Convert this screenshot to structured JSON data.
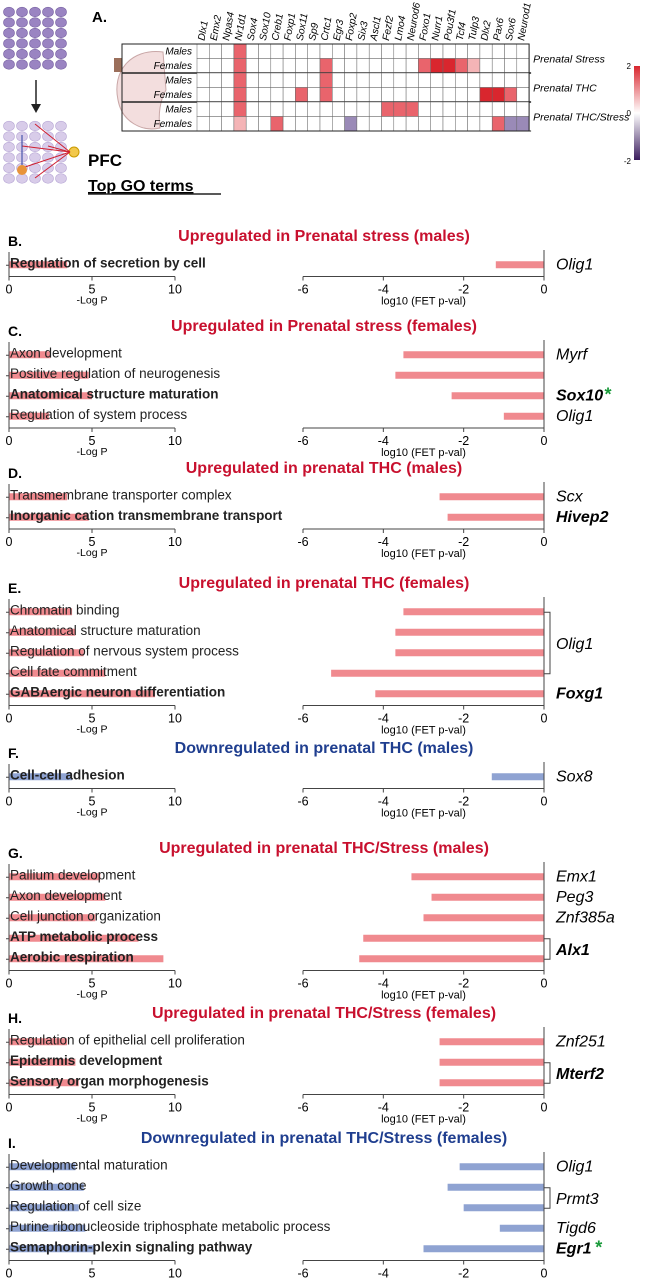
{
  "colors": {
    "up": "#c8102e",
    "down": "#1f3e8f",
    "bar_up": "#f08a8f",
    "bar_down": "#8fa3d2",
    "cell_up": "#e9646c",
    "cell_up_dark": "#d9262e",
    "cell_down": "#9a8ab7"
  },
  "heatmap": {
    "label": "A.",
    "genes": [
      "Dlx1",
      "Emx2",
      "Npas4",
      "Nr1d1",
      "Sox4",
      "Sox10",
      "Creb1",
      "Foxp1",
      "Sox11",
      "Sp9",
      "Crtc1",
      "Egr3",
      "Foxp2",
      "Six3",
      "Ascl1",
      "Fezf2",
      "Lmo4",
      "Neurod6",
      "Foxo1",
      "Nurr1",
      "Pou3f1",
      "Tcf4",
      "Tulp3",
      "Dlx2",
      "Pax6",
      "Sox6",
      "Neurod1"
    ],
    "groups": [
      {
        "name": "Prenatal Stress",
        "rows": [
          "Males",
          "Females"
        ]
      },
      {
        "name": "Prenatal THC",
        "rows": [
          "Males",
          "Females"
        ]
      },
      {
        "name": "Prenatal THC/Stress",
        "rows": [
          "Males",
          "Females"
        ]
      }
    ],
    "cells": [
      [
        0,
        0,
        0,
        0.8,
        0,
        0,
        0,
        0,
        0,
        0,
        0,
        0,
        0,
        0,
        0,
        0,
        0,
        0,
        0,
        0,
        0,
        0,
        0,
        0,
        0,
        0,
        0
      ],
      [
        0,
        0,
        0,
        0.8,
        0,
        0,
        0,
        0,
        0,
        0,
        0.7,
        0,
        0,
        0,
        0,
        0,
        0,
        0,
        0.8,
        1,
        1,
        0.8,
        0.3,
        0,
        0,
        0,
        0
      ],
      [
        0,
        0,
        0,
        0.8,
        0,
        0,
        0,
        0,
        0,
        0,
        0.7,
        0,
        0,
        0,
        0,
        0,
        0,
        0,
        0,
        0,
        0,
        0,
        0,
        0,
        0,
        0,
        0
      ],
      [
        0,
        0,
        0,
        0.5,
        0,
        0,
        0,
        0,
        0.8,
        0,
        0.7,
        0,
        0,
        0,
        0,
        0,
        0,
        0,
        0,
        0,
        0,
        0,
        0,
        0.9,
        1,
        0.6,
        0
      ],
      [
        0,
        0,
        0,
        0.8,
        0,
        0,
        0,
        0,
        0,
        0,
        0,
        0,
        0,
        0,
        0,
        0.7,
        0.6,
        0.6,
        0,
        0,
        0,
        0,
        0,
        0,
        0,
        0,
        0
      ],
      [
        0,
        0,
        0,
        0.3,
        0,
        0,
        0.7,
        0,
        0,
        0,
        0,
        0,
        -0.6,
        0,
        0,
        0,
        0,
        0,
        0,
        0,
        0,
        0,
        0,
        0,
        0.8,
        -0.5,
        -0.5
      ]
    ],
    "colorbar": {
      "max": "2",
      "mid": "0",
      "min": "-2"
    }
  },
  "pfc_label": "PFC",
  "go_header": "Top GO terms",
  "left_axis": {
    "ticks": [
      "0",
      "5",
      "10"
    ],
    "label": "-Log P",
    "max": 10
  },
  "right_axis": {
    "ticks": [
      "-6",
      "-4",
      "-2",
      "0"
    ],
    "label": "log10 (FET p-val)",
    "min": -6
  },
  "panels": [
    {
      "label": "B.",
      "title": "Upregulated in Prenatal stress (males)",
      "dir": "up",
      "terms": [
        {
          "text": "Regulation of secretion by cell",
          "bold": true,
          "logp": 3.5
        }
      ],
      "genes": [
        {
          "name": "Olig1",
          "bold": false,
          "star": false,
          "fet": -1.2
        }
      ]
    },
    {
      "label": "C.",
      "title": "Upregulated in Prenatal stress (females)",
      "dir": "up",
      "terms": [
        {
          "text": "Axon development",
          "bold": false,
          "logp": 2.5
        },
        {
          "text": "Positive regulation of neurogenesis",
          "bold": false,
          "logp": 4.8
        },
        {
          "text": "Anatomical structure maturation",
          "bold": true,
          "logp": 5.0
        },
        {
          "text": "Regulation of system process",
          "bold": false,
          "logp": 2.4
        }
      ],
      "genes": [
        {
          "name": "Myrf",
          "bold": false,
          "star": false,
          "fet": -3.5
        },
        {
          "name": "",
          "bold": false,
          "star": false,
          "fet": -3.7
        },
        {
          "name": "Sox10",
          "bold": true,
          "star": true,
          "fet": -2.3
        },
        {
          "name": "Olig1",
          "bold": false,
          "star": false,
          "fet": -1.0
        }
      ]
    },
    {
      "label": "D.",
      "title": "Upregulated in prenatal THC (males)",
      "dir": "up",
      "terms": [
        {
          "text": "Transmembrane transporter complex",
          "bold": false,
          "logp": 3.5
        },
        {
          "text": "Inorganic cation transmembrane transport",
          "bold": true,
          "logp": 4.8
        }
      ],
      "genes": [
        {
          "name": "Scx",
          "bold": false,
          "star": false,
          "fet": -2.6
        },
        {
          "name": "Hivep2",
          "bold": true,
          "star": false,
          "fet": -2.4
        }
      ]
    },
    {
      "label": "E.",
      "title": "Upregulated in prenatal THC (females)",
      "dir": "up",
      "terms": [
        {
          "text": "Chromatin binding",
          "bold": false,
          "logp": 3.8
        },
        {
          "text": "Anatomical structure maturation",
          "bold": false,
          "logp": 4.0
        },
        {
          "text": "Regulation of nervous system process",
          "bold": false,
          "logp": 4.5
        },
        {
          "text": "Cell fate commitment",
          "bold": false,
          "logp": 5.8
        },
        {
          "text": "GABAergic neuron differentiation",
          "bold": true,
          "logp": 8.8
        }
      ],
      "genes": [
        {
          "name": "",
          "bold": false,
          "star": false,
          "fet": -3.5
        },
        {
          "name": "",
          "bold": false,
          "star": false,
          "fet": -3.7
        },
        {
          "name": "",
          "bold": false,
          "star": false,
          "fet": -3.7
        },
        {
          "name": "",
          "bold": false,
          "star": false,
          "fet": -5.3
        },
        {
          "name": "Foxg1",
          "bold": true,
          "star": false,
          "fet": -4.2
        }
      ],
      "bracket": {
        "name": "Olig1",
        "from": 0,
        "to": 3
      }
    },
    {
      "label": "F.",
      "title": "Downregulated in prenatal THC (males)",
      "dir": "down",
      "terms": [
        {
          "text": "Cell-cell adhesion",
          "bold": true,
          "logp": 3.8
        }
      ],
      "genes": [
        {
          "name": "Sox8",
          "bold": false,
          "star": false,
          "fet": -1.3
        }
      ]
    },
    {
      "label": "G.",
      "title": "Upregulated in prenatal THC/Stress (males)",
      "dir": "up",
      "terms": [
        {
          "text": "Pallium development",
          "bold": false,
          "logp": 5.5
        },
        {
          "text": "Axon development",
          "bold": false,
          "logp": 5.8
        },
        {
          "text": "Cell junction organization",
          "bold": false,
          "logp": 5.2
        },
        {
          "text": "ATP metabolic process",
          "bold": true,
          "logp": 7.8
        },
        {
          "text": "Aerobic respiration",
          "bold": true,
          "logp": 9.3
        }
      ],
      "genes": [
        {
          "name": "Emx1",
          "bold": false,
          "star": false,
          "fet": -3.3
        },
        {
          "name": "Peg3",
          "bold": false,
          "star": false,
          "fet": -2.8
        },
        {
          "name": "Znf385a",
          "bold": false,
          "star": false,
          "fet": -3.0
        },
        {
          "name": "",
          "bold": false,
          "star": false,
          "fet": -4.5
        },
        {
          "name": "",
          "bold": false,
          "star": false,
          "fet": -4.6
        }
      ],
      "bracket": {
        "name": "Alx1",
        "from": 3,
        "to": 4,
        "bold": true
      }
    },
    {
      "label": "H.",
      "title": "Upregulated in prenatal THC/Stress (females)",
      "dir": "up",
      "terms": [
        {
          "text": "Regulation of epithelial cell proliferation",
          "bold": false,
          "logp": 3.5
        },
        {
          "text": "Epidermis development",
          "bold": true,
          "logp": 4.0
        },
        {
          "text": "Sensory organ morphogenesis",
          "bold": true,
          "logp": 4.2
        }
      ],
      "genes": [
        {
          "name": "Znf251",
          "bold": false,
          "star": false,
          "fet": -2.6
        },
        {
          "name": "",
          "bold": false,
          "star": false,
          "fet": -2.6
        },
        {
          "name": "",
          "bold": false,
          "star": false,
          "fet": -2.6
        }
      ],
      "bracket": {
        "name": "Mterf2",
        "from": 1,
        "to": 2,
        "bold": true
      }
    },
    {
      "label": "I.",
      "title": "Downregulated in prenatal THC/Stress (females)",
      "dir": "down",
      "terms": [
        {
          "text": "Developmental maturation",
          "bold": false,
          "logp": 4.0
        },
        {
          "text": "Growth cone",
          "bold": false,
          "logp": 4.5
        },
        {
          "text": "Regulation of cell size",
          "bold": false,
          "logp": 4.2
        },
        {
          "text": "Purine ribonucleoside triphosphate metabolic process",
          "bold": false,
          "logp": 4.6
        },
        {
          "text": "Semaphorin-plexin signaling pathway",
          "bold": true,
          "logp": 5.2
        }
      ],
      "genes": [
        {
          "name": "Olig1",
          "bold": false,
          "star": false,
          "fet": -2.1
        },
        {
          "name": "",
          "bold": false,
          "star": false,
          "fet": -2.4
        },
        {
          "name": "",
          "bold": false,
          "star": false,
          "fet": -2.0
        },
        {
          "name": "Tigd6",
          "bold": false,
          "star": false,
          "fet": -1.1
        },
        {
          "name": "Egr1",
          "bold": true,
          "star": true,
          "fet": -3.0
        }
      ],
      "bracket": {
        "name": "Prmt3",
        "from": 1,
        "to": 2
      }
    }
  ]
}
